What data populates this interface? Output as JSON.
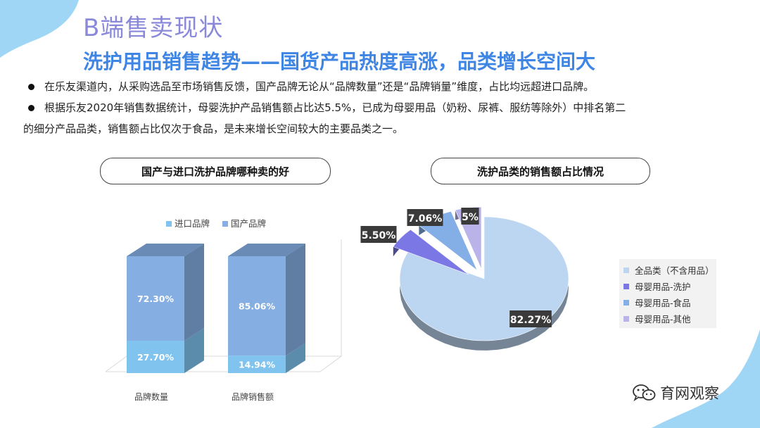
{
  "header": {
    "title": "B端售卖现状",
    "subtitle": "洗护用品销售趋势——国货产品热度高涨，品类增长空间大"
  },
  "bullets": [
    "在乐友渠道内，从采购选品至市场销售反馈，国产品牌无论从“品牌数量”还是“品牌销量”维度，占比均远超进口品牌。",
    "根据乐友2020年销售数据统计，母婴洗护产品销售额占比达5.5%，已成为母婴用品（奶粉、尿裤、服纺等除外）中排名第二",
    "的细分产品品类，销售额占比仅次于食品，是未来增长空间较大的主要品类之一。"
  ],
  "left_panel": {
    "heading": "国产与进口洗护品牌哪种卖的好"
  },
  "right_panel": {
    "heading": "洗护品类的销售额占比情况"
  },
  "colors": {
    "import": "#7fc3ee",
    "domestic": "#85aee3",
    "pie_all": "#bcd6f2",
    "pie_care": "#7b78e6",
    "pie_food": "#84aee6",
    "pie_other": "#b9b3ea"
  },
  "chart_data": [
    {
      "type": "bar",
      "stacked": true,
      "categories": [
        "品牌数量",
        "品牌销售额"
      ],
      "series": [
        {
          "name": "进口品牌",
          "values": [
            27.7,
            14.94
          ],
          "labels": [
            "27.70%",
            "14.94%"
          ]
        },
        {
          "name": "国产品牌",
          "values": [
            72.3,
            85.06
          ],
          "labels": [
            "72.30%",
            "85.06%"
          ]
        }
      ],
      "legend": "top",
      "grid": false
    },
    {
      "type": "pie",
      "labels": [
        "全品类（不含用品）",
        "母婴用品-洗护",
        "母婴用品-食品",
        "母婴用品-其他"
      ],
      "values": [
        82.27,
        5.5,
        7.06,
        5
      ],
      "value_labels": [
        "82.27%",
        "5.50%",
        "7.06%",
        "5%"
      ],
      "legend": "right"
    }
  ],
  "watermark": {
    "text": "育网观察",
    "icon": "wechat-icon"
  }
}
